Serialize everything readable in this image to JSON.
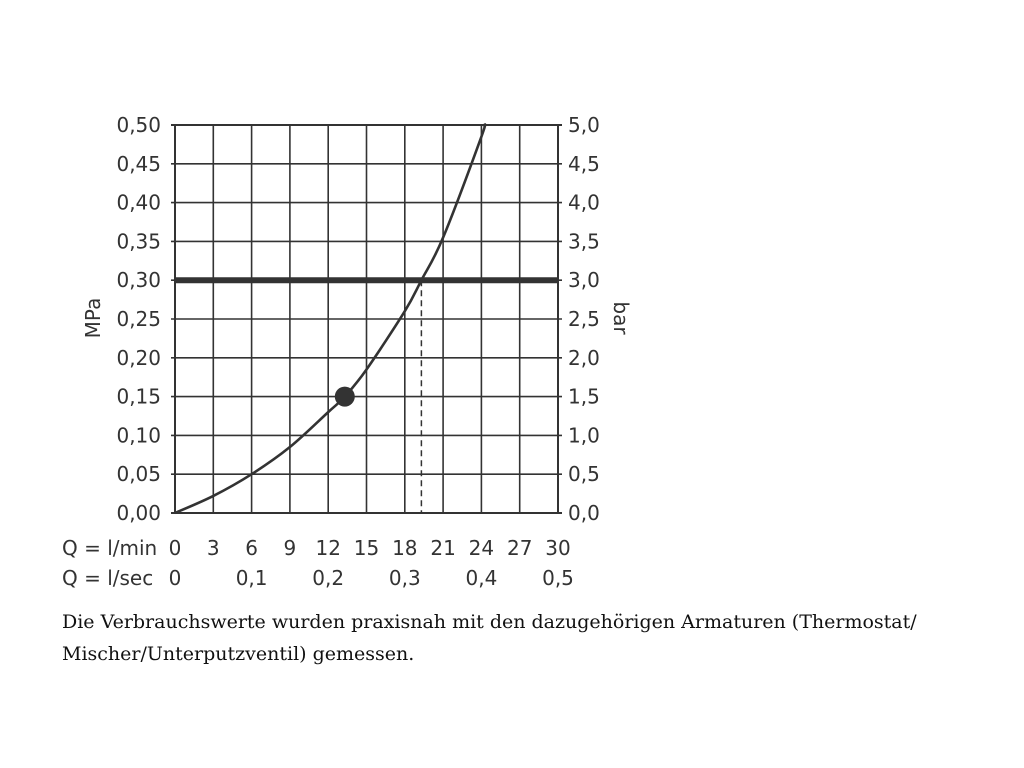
{
  "chart_data": {
    "type": "line",
    "y_left": {
      "label": "MPa",
      "range": [
        0,
        0.5
      ],
      "ticks": [
        "0,00",
        "0,05",
        "0,10",
        "0,15",
        "0,20",
        "0,25",
        "0,30",
        "0,35",
        "0,40",
        "0,45",
        "0,50"
      ]
    },
    "y_right": {
      "label": "bar",
      "range": [
        0,
        5
      ],
      "ticks": [
        "0,0",
        "0,5",
        "1,0",
        "1,5",
        "2,0",
        "2,5",
        "3,0",
        "3,5",
        "4,0",
        "4,5",
        "5,0"
      ]
    },
    "x_primary": {
      "label": "Q = l/min",
      "range": [
        0,
        30
      ],
      "ticks": [
        "0",
        "3",
        "6",
        "9",
        "12",
        "15",
        "18",
        "21",
        "24",
        "27",
        "30"
      ]
    },
    "x_secondary": {
      "label": "Q = l/sec",
      "ticks": [
        "0",
        "0,1",
        "0,2",
        "0,3",
        "0,4",
        "0,5"
      ]
    },
    "grid": true,
    "series": [
      {
        "x": [
          0,
          3,
          6,
          9,
          12,
          13.3,
          15,
          18,
          19.3,
          21,
          24,
          24.2
        ],
        "y": [
          0,
          0.022,
          0.05,
          0.085,
          0.13,
          0.15,
          0.185,
          0.26,
          0.3,
          0.355,
          0.485,
          0.5
        ]
      }
    ],
    "reference_line": {
      "y": 0.3
    },
    "marker_point": {
      "x": 13.3,
      "y": 0.15
    },
    "drop_line": {
      "x": 19.3,
      "y_from": 0,
      "y_to": 0.3
    },
    "colors": {
      "ink": "#333333",
      "grid": "#333333"
    }
  },
  "caption": "Die Verbrauchswerte wurden praxisnah mit den dazugehörigen Armaturen (Thermostat/ Mischer/Unterputzventil) gemessen."
}
